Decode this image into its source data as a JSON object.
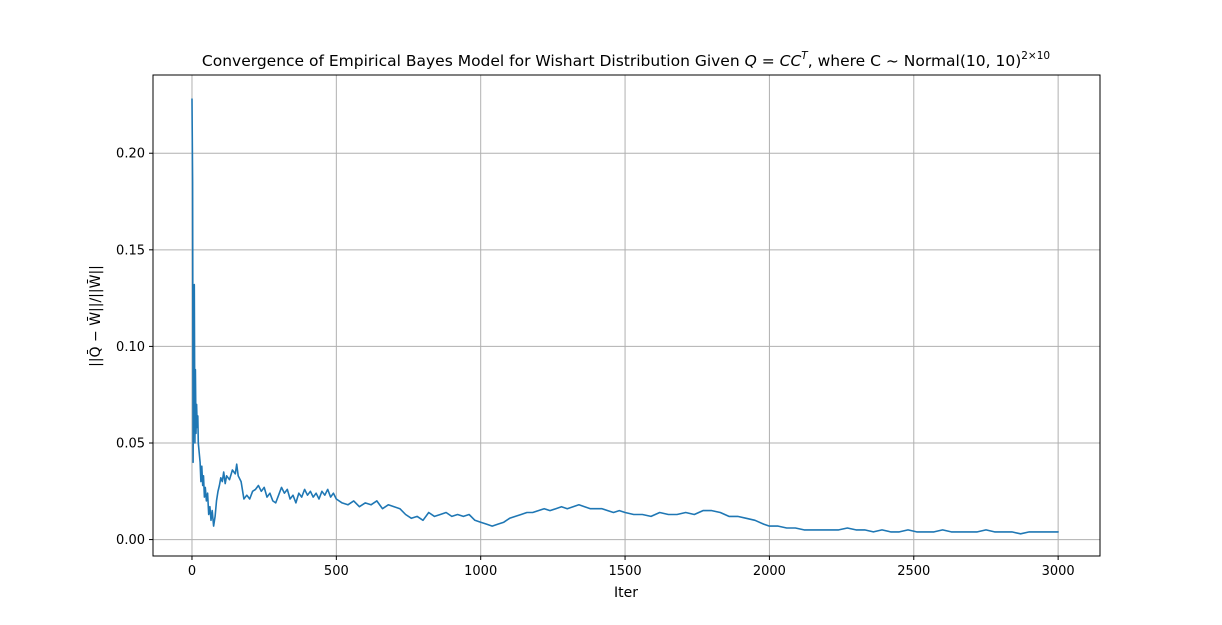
{
  "chart_data": {
    "type": "line",
    "title": "Convergence of Empirical Bayes Model for Wishart Distribution Given Q = CC^T, where C ~ Normal(10, 10)^(2×10)",
    "title_parts": {
      "prefix": "Convergence of Empirical Bayes Model for Wishart Distribution Given ",
      "eq": "Q = CC",
      "eq_sup": "T",
      "middle": ", where ",
      "dist": "C ~ Normal(10, 10)",
      "dist_sup": "2×10"
    },
    "xlabel": "Iter",
    "ylabel": "||Q̄ − W̄||/||W̄||",
    "xlim": [
      -135,
      3145
    ],
    "ylim": [
      -0.0085,
      0.2405
    ],
    "xticks": [
      0,
      500,
      1000,
      1500,
      2000,
      2500,
      3000
    ],
    "yticks": [
      0.0,
      0.05,
      0.1,
      0.15,
      0.2
    ],
    "xtick_labels": [
      "0",
      "500",
      "1000",
      "1500",
      "2000",
      "2500",
      "3000"
    ],
    "ytick_labels": [
      "0.00",
      "0.05",
      "0.10",
      "0.15",
      "0.20"
    ],
    "grid": true,
    "line_color": "#1f77b4",
    "series": [
      {
        "x": [
          0,
          2,
          4,
          6,
          8,
          10,
          12,
          14,
          16,
          18,
          20,
          22,
          25,
          28,
          31,
          34,
          37,
          40,
          43,
          46,
          50,
          54,
          58,
          62,
          66,
          70,
          75,
          80,
          85,
          90,
          95,
          100,
          105,
          110,
          115,
          120,
          130,
          140,
          150,
          155,
          160,
          170,
          180,
          190,
          200,
          210,
          220,
          230,
          240,
          250,
          260,
          270,
          280,
          290,
          300,
          310,
          320,
          330,
          340,
          350,
          360,
          370,
          380,
          390,
          400,
          410,
          420,
          430,
          440,
          450,
          460,
          470,
          480,
          490,
          500,
          520,
          540,
          560,
          580,
          600,
          620,
          640,
          660,
          680,
          700,
          720,
          740,
          760,
          780,
          800,
          820,
          840,
          860,
          880,
          900,
          920,
          940,
          960,
          980,
          1000,
          1020,
          1040,
          1060,
          1080,
          1100,
          1120,
          1140,
          1160,
          1180,
          1200,
          1220,
          1240,
          1260,
          1280,
          1300,
          1320,
          1340,
          1360,
          1380,
          1400,
          1420,
          1440,
          1460,
          1480,
          1500,
          1530,
          1560,
          1590,
          1620,
          1650,
          1680,
          1710,
          1740,
          1770,
          1800,
          1830,
          1860,
          1890,
          1920,
          1950,
          1980,
          2000,
          2030,
          2060,
          2090,
          2120,
          2150,
          2180,
          2210,
          2240,
          2270,
          2300,
          2330,
          2360,
          2390,
          2420,
          2450,
          2480,
          2510,
          2540,
          2570,
          2600,
          2630,
          2660,
          2690,
          2720,
          2750,
          2780,
          2810,
          2840,
          2870,
          2900,
          2930,
          2960,
          3000
        ],
        "y": [
          0.228,
          0.185,
          0.04,
          0.105,
          0.132,
          0.05,
          0.088,
          0.055,
          0.07,
          0.058,
          0.064,
          0.05,
          0.045,
          0.04,
          0.03,
          0.038,
          0.028,
          0.033,
          0.022,
          0.027,
          0.02,
          0.024,
          0.013,
          0.017,
          0.01,
          0.015,
          0.007,
          0.012,
          0.02,
          0.025,
          0.028,
          0.032,
          0.03,
          0.035,
          0.029,
          0.033,
          0.031,
          0.036,
          0.034,
          0.039,
          0.033,
          0.03,
          0.021,
          0.023,
          0.021,
          0.025,
          0.026,
          0.028,
          0.025,
          0.027,
          0.022,
          0.024,
          0.02,
          0.019,
          0.023,
          0.027,
          0.024,
          0.026,
          0.021,
          0.023,
          0.019,
          0.024,
          0.022,
          0.026,
          0.023,
          0.025,
          0.022,
          0.024,
          0.021,
          0.025,
          0.023,
          0.026,
          0.022,
          0.024,
          0.021,
          0.019,
          0.018,
          0.02,
          0.017,
          0.019,
          0.018,
          0.02,
          0.016,
          0.018,
          0.017,
          0.016,
          0.013,
          0.011,
          0.012,
          0.01,
          0.014,
          0.012,
          0.013,
          0.014,
          0.012,
          0.013,
          0.012,
          0.013,
          0.01,
          0.009,
          0.008,
          0.007,
          0.008,
          0.009,
          0.011,
          0.012,
          0.013,
          0.014,
          0.014,
          0.015,
          0.016,
          0.015,
          0.016,
          0.017,
          0.016,
          0.017,
          0.018,
          0.017,
          0.016,
          0.016,
          0.016,
          0.015,
          0.014,
          0.015,
          0.014,
          0.013,
          0.013,
          0.012,
          0.014,
          0.013,
          0.013,
          0.014,
          0.013,
          0.015,
          0.015,
          0.014,
          0.012,
          0.012,
          0.011,
          0.01,
          0.008,
          0.007,
          0.007,
          0.006,
          0.006,
          0.005,
          0.005,
          0.005,
          0.005,
          0.005,
          0.006,
          0.005,
          0.005,
          0.004,
          0.005,
          0.004,
          0.004,
          0.005,
          0.004,
          0.004,
          0.004,
          0.005,
          0.004,
          0.004,
          0.004,
          0.004,
          0.005,
          0.004,
          0.004,
          0.004,
          0.003,
          0.004,
          0.004,
          0.004,
          0.004
        ]
      }
    ]
  }
}
